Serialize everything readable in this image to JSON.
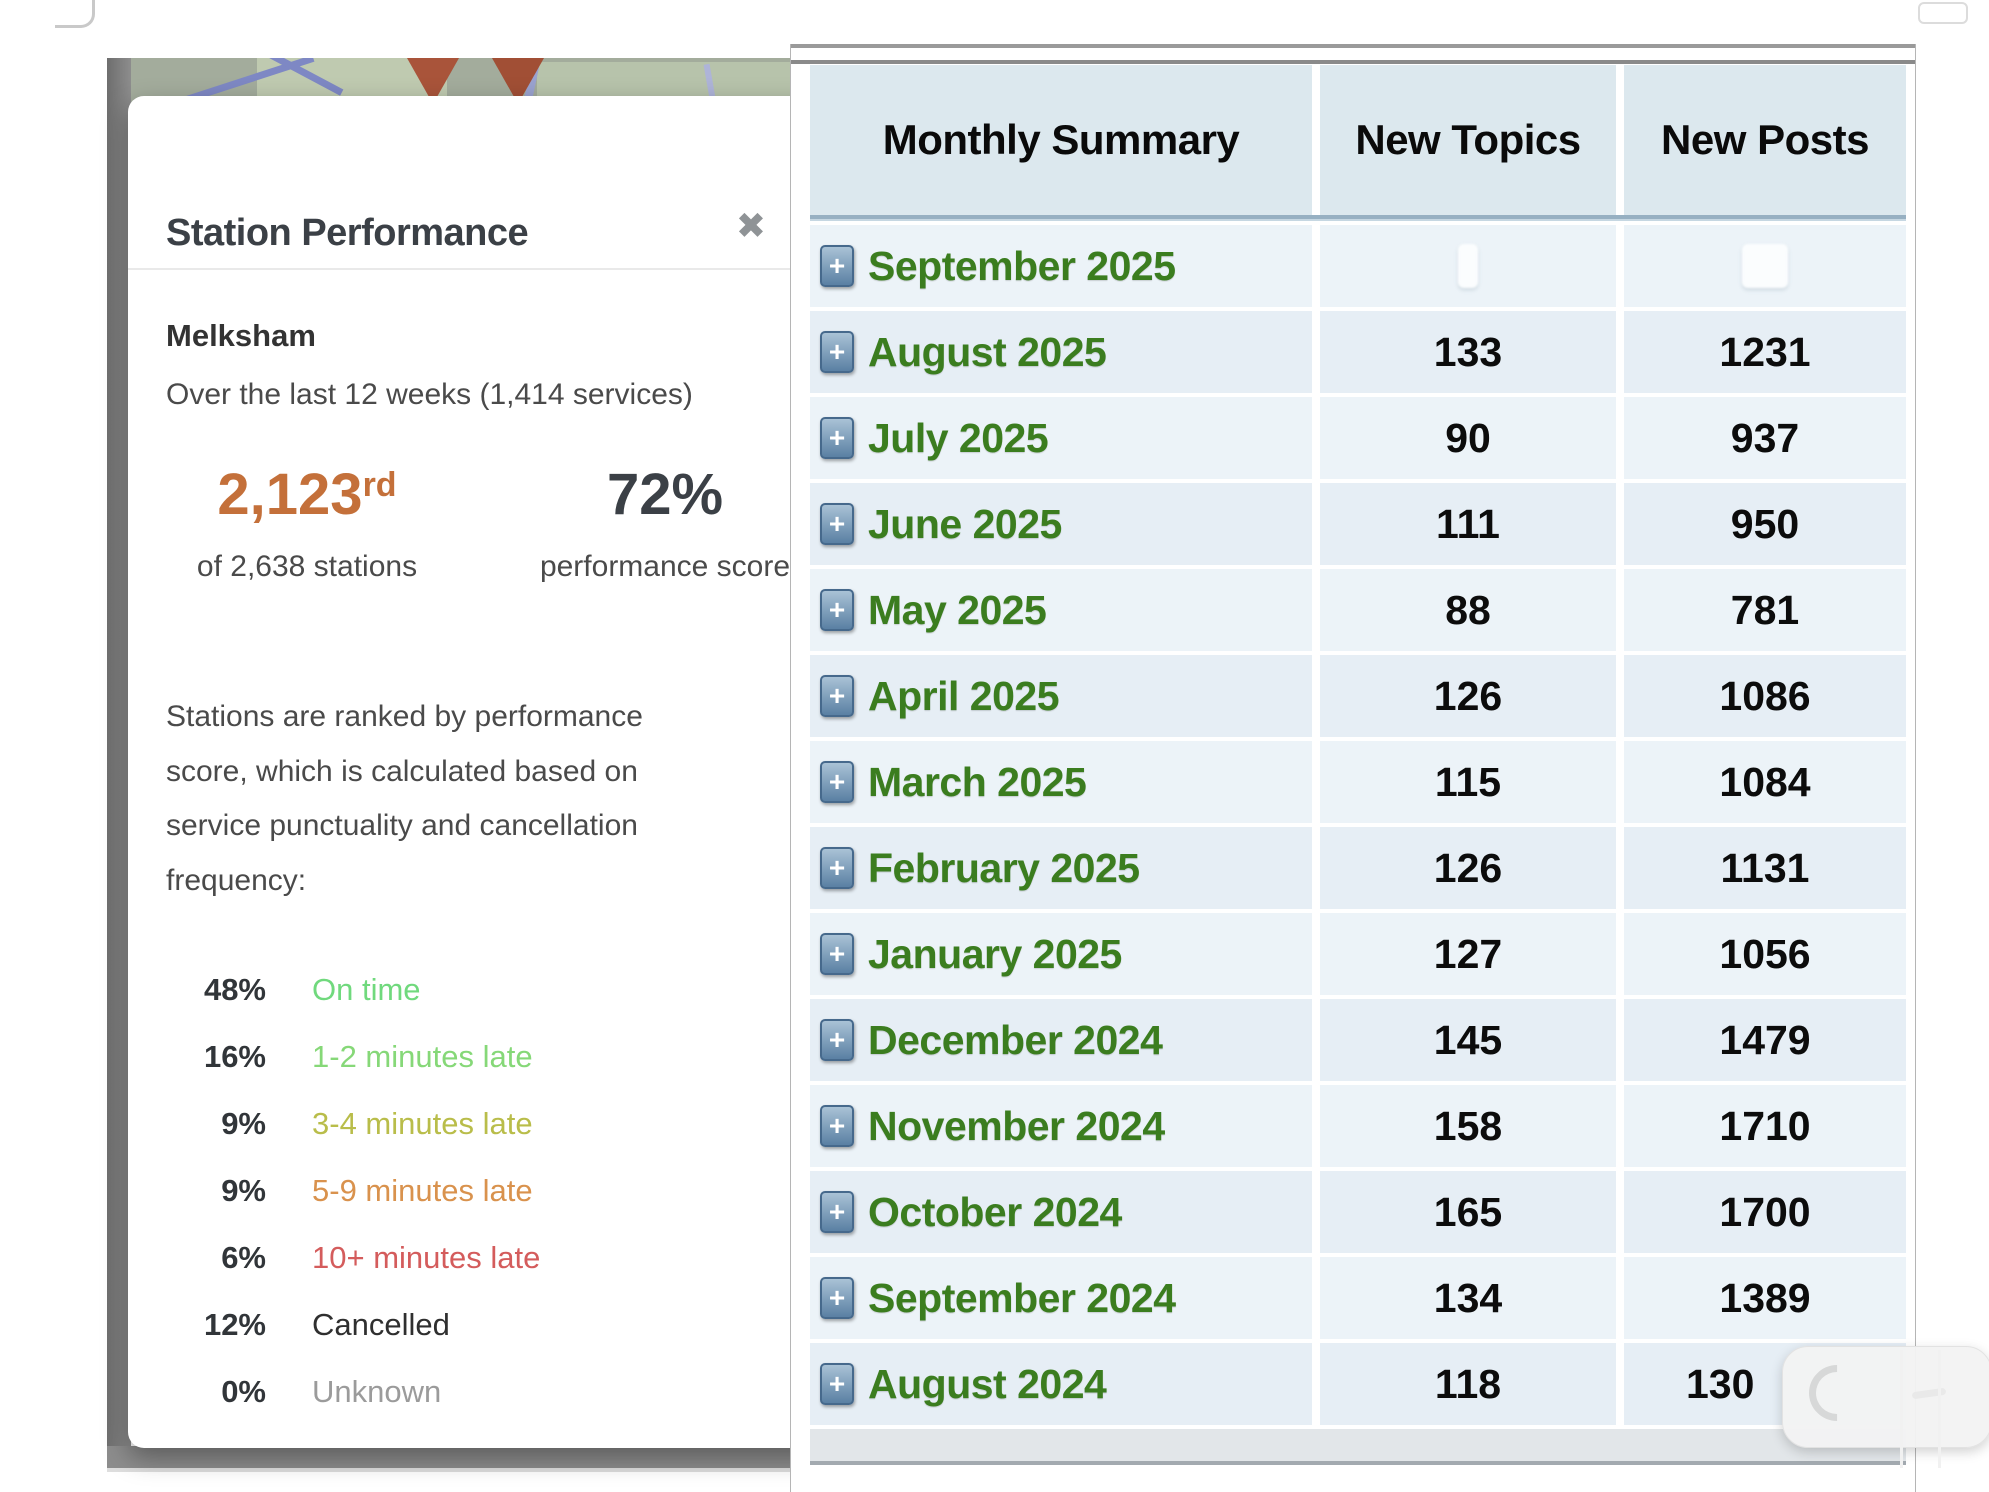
{
  "station_card": {
    "title": "Station Performance",
    "close_icon": "✖",
    "station_name": "Melksham",
    "period_text": "Over the last 12 weeks (1,414 services)",
    "rank": {
      "value": "2,123",
      "ordinal": "rd",
      "sub": "of 2,638 stations"
    },
    "score": {
      "value": "72%",
      "sub": "performance score"
    },
    "description": "Stations are ranked by performance score, which is calculated based on service punctuality and cancellation frequency:",
    "breakdown": [
      {
        "percent": "48%",
        "label": "On time",
        "color": "#70d97d"
      },
      {
        "percent": "16%",
        "label": "1-2 minutes late",
        "color": "#86d878"
      },
      {
        "percent": "9%",
        "label": "3-4 minutes late",
        "color": "#b9bd4a"
      },
      {
        "percent": "9%",
        "label": "5-9 minutes late",
        "color": "#d9924d"
      },
      {
        "percent": "6%",
        "label": "10+ minutes late",
        "color": "#d45c5c"
      },
      {
        "percent": "12%",
        "label": "Cancelled",
        "color": "#2f2f2f"
      },
      {
        "percent": "0%",
        "label": "Unknown",
        "color": "#9b9b9b"
      }
    ]
  },
  "forum_table": {
    "headers": [
      "Monthly Summary",
      "New Topics",
      "New Posts"
    ],
    "expand_icon": "+",
    "rows": [
      {
        "month": "September 2025",
        "topics": "",
        "posts": "",
        "ghost": true
      },
      {
        "month": "August 2025",
        "topics": "133",
        "posts": "1231"
      },
      {
        "month": "July 2025",
        "topics": "90",
        "posts": "937"
      },
      {
        "month": "June 2025",
        "topics": "111",
        "posts": "950"
      },
      {
        "month": "May 2025",
        "topics": "88",
        "posts": "781"
      },
      {
        "month": "April 2025",
        "topics": "126",
        "posts": "1086"
      },
      {
        "month": "March 2025",
        "topics": "115",
        "posts": "1084"
      },
      {
        "month": "February 2025",
        "topics": "126",
        "posts": "1131"
      },
      {
        "month": "January 2025",
        "topics": "127",
        "posts": "1056"
      },
      {
        "month": "December 2024",
        "topics": "145",
        "posts": "1479"
      },
      {
        "month": "November 2024",
        "topics": "158",
        "posts": "1710"
      },
      {
        "month": "October 2024",
        "topics": "165",
        "posts": "1700"
      },
      {
        "month": "September 2024",
        "topics": "134",
        "posts": "1389"
      },
      {
        "month": "August 2024",
        "topics": "118",
        "posts": "130",
        "obscured": true
      }
    ]
  },
  "colors": {
    "accent_orange": "#c4703a",
    "month_green": "#3b7d1f",
    "header_bg": "#dce8ee",
    "row_bg": "#e9f1f7",
    "title_dark": "#3b4046"
  }
}
